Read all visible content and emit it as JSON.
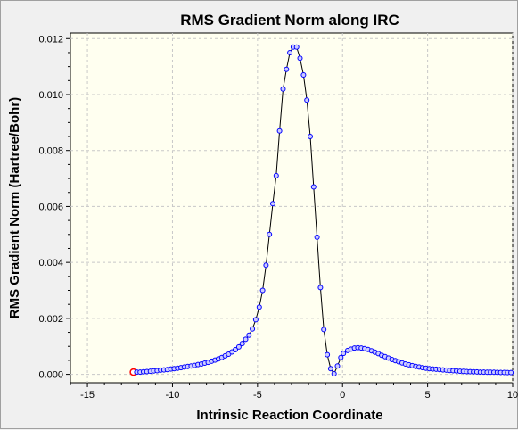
{
  "chart_data": {
    "type": "line",
    "title": "RMS Gradient Norm along IRC",
    "xlabel": "Intrinsic Reaction Coordinate",
    "ylabel": "RMS Gradient Norm (Hartree/Bohr)",
    "xlim": [
      -16,
      10
    ],
    "ylim": [
      -0.0003,
      0.0122
    ],
    "xticks": [
      -15,
      -10,
      -5,
      0,
      5,
      10
    ],
    "xtick_labels": [
      "-15",
      "-10",
      "-5",
      "0",
      "5",
      "10"
    ],
    "yticks": [
      0,
      0.002,
      0.004,
      0.006,
      0.008,
      0.01,
      0.012
    ],
    "ytick_labels": [
      "0.000",
      "0.002",
      "0.004",
      "0.006",
      "0.008",
      "0.010",
      "0.012"
    ],
    "grid": true,
    "colors": {
      "plot_background": "#fffff0",
      "line": "#000000",
      "marker_edge": "#0000ff",
      "highlight_marker": "#ff0000"
    },
    "highlight_point_index": 0,
    "series": [
      {
        "x": [
          -12.3,
          -12.1,
          -11.9,
          -11.7,
          -11.5,
          -11.3,
          -11.1,
          -10.9,
          -10.7,
          -10.5,
          -10.3,
          -10.1,
          -9.9,
          -9.7,
          -9.5,
          -9.3,
          -9.1,
          -8.9,
          -8.7,
          -8.5,
          -8.3,
          -8.1,
          -7.9,
          -7.7,
          -7.5,
          -7.3,
          -7.1,
          -6.9,
          -6.7,
          -6.5,
          -6.3,
          -6.1,
          -5.9,
          -5.7,
          -5.5,
          -5.3,
          -5.1,
          -4.9,
          -4.7,
          -4.5,
          -4.3,
          -4.1,
          -3.9,
          -3.7,
          -3.5,
          -3.3,
          -3.1,
          -2.9,
          -2.7,
          -2.5,
          -2.3,
          -2.1,
          -1.9,
          -1.7,
          -1.5,
          -1.3,
          -1.1,
          -0.9,
          -0.7,
          -0.5,
          -0.3,
          -0.1,
          0.05,
          0.3,
          0.5,
          0.7,
          0.9,
          1.1,
          1.3,
          1.5,
          1.7,
          1.9,
          2.1,
          2.3,
          2.5,
          2.7,
          2.9,
          3.1,
          3.3,
          3.5,
          3.7,
          3.9,
          4.1,
          4.3,
          4.5,
          4.7,
          4.9,
          5.1,
          5.3,
          5.5,
          5.7,
          5.9,
          6.1,
          6.3,
          6.5,
          6.7,
          6.9,
          7.1,
          7.3,
          7.5,
          7.7,
          7.9,
          8.1,
          8.3,
          8.5,
          8.7,
          8.9,
          9.1,
          9.3,
          9.5,
          9.7,
          9.9
        ],
        "y": [
          8e-05,
          8e-05,
          8e-05,
          9e-05,
          0.0001,
          0.00011,
          0.00012,
          0.00013,
          0.00015,
          0.00016,
          0.00017,
          0.00019,
          0.0002,
          0.00022,
          0.00024,
          0.00026,
          0.00028,
          0.0003,
          0.00032,
          0.00035,
          0.00037,
          0.0004,
          0.00043,
          0.00047,
          0.00051,
          0.00055,
          0.0006,
          0.00066,
          0.00072,
          0.0008,
          0.00088,
          0.00098,
          0.0011,
          0.00125,
          0.0014,
          0.00162,
          0.00195,
          0.0024,
          0.003,
          0.0039,
          0.005,
          0.0061,
          0.0071,
          0.0087,
          0.0102,
          0.0109,
          0.0115,
          0.0117,
          0.0117,
          0.0113,
          0.0107,
          0.0098,
          0.0085,
          0.0067,
          0.0049,
          0.0031,
          0.0016,
          0.0007,
          0.0002,
          2e-05,
          0.0003,
          0.0006,
          0.00075,
          0.00085,
          0.0009,
          0.00094,
          0.00095,
          0.00094,
          0.00092,
          0.00089,
          0.00084,
          0.00079,
          0.00074,
          0.00068,
          0.00063,
          0.00058,
          0.00053,
          0.00049,
          0.00045,
          0.00041,
          0.00037,
          0.00034,
          0.00031,
          0.00028,
          0.00026,
          0.00024,
          0.00022,
          0.0002,
          0.00019,
          0.00018,
          0.00017,
          0.00016,
          0.00015,
          0.00014,
          0.00013,
          0.00012,
          0.00011,
          0.000105,
          0.0001,
          9.5e-05,
          9e-05,
          8.5e-05,
          8e-05,
          7.8e-05,
          7.6e-05,
          7.4e-05,
          7.2e-05,
          7e-05,
          6.8e-05,
          6.6e-05,
          6.5e-05,
          6.4e-05
        ]
      }
    ]
  }
}
